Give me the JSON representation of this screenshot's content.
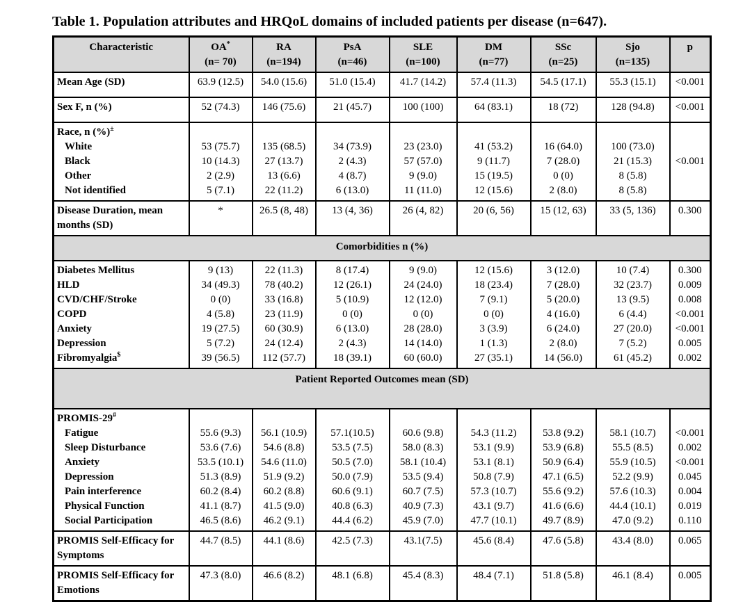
{
  "page": {
    "title": "Table 1. Population attributes and HRQoL domains of included patients per disease (n=647)."
  },
  "colors": {
    "header_bg": "#d8d8d8",
    "border": "#000000",
    "page_bg": "#ffffff"
  },
  "table": {
    "header": {
      "characteristic": "Characteristic",
      "p": "p",
      "diseases": [
        {
          "abbr": "OA",
          "sup": "*",
          "n": "(n= 70)"
        },
        {
          "abbr": "RA",
          "sup": "",
          "n": "(n=194)"
        },
        {
          "abbr": "PsA",
          "sup": "",
          "n": "(n=46)"
        },
        {
          "abbr": "SLE",
          "sup": "",
          "n": "(n=100)"
        },
        {
          "abbr": "DM",
          "sup": "",
          "n": "(n=77)"
        },
        {
          "abbr": "SSc",
          "sup": "",
          "n": "(n=25)"
        },
        {
          "abbr": "Sjo",
          "sup": "",
          "n": "(n=135)"
        }
      ]
    },
    "rows": [
      {
        "type": "block",
        "lines": [
          {
            "label": "Mean Age (SD)",
            "values": [
              "63.9 (12.5)",
              "54.0 (15.6)",
              "51.0 (15.4)",
              "41.7 (14.2)",
              "57.4 (11.3)",
              "54.5 (17.1)",
              "55.3 (15.1)"
            ],
            "p": "<0.001"
          }
        ]
      },
      {
        "type": "block",
        "lines": [
          {
            "label": "Sex F, n (%)",
            "values": [
              "52 (74.3)",
              "146 (75.6)",
              "21 (45.7)",
              "100 (100)",
              "64 (83.1)",
              "18 (72)",
              "128 (94.8)"
            ],
            "p": "<0.001"
          }
        ]
      },
      {
        "type": "block",
        "header": {
          "label": "Race, n (%)",
          "sup": "±"
        },
        "shared_p": "<0.001",
        "lines": [
          {
            "label": "White",
            "indent": true,
            "values": [
              "53 (75.7)",
              "135 (68.5)",
              "34 (73.9)",
              "23 (23.0)",
              "41 (53.2)",
              "16 (64.0)",
              "100 (73.0)"
            ],
            "p": ""
          },
          {
            "label": "Black",
            "indent": true,
            "values": [
              "10 (14.3)",
              "27 (13.7)",
              "2 (4.3)",
              "57 (57.0)",
              "9 (11.7)",
              "7 (28.0)",
              "21 (15.3)"
            ],
            "p": ""
          },
          {
            "label": "Other",
            "indent": true,
            "values": [
              "2 (2.9)",
              "13 (6.6)",
              "4 (8.7)",
              "9 (9.0)",
              "15 (19.5)",
              "0 (0)",
              "8 (5.8)"
            ],
            "p": ""
          },
          {
            "label": "Not identified",
            "indent": true,
            "values": [
              "5 (7.1)",
              "22 (11.2)",
              "6 (13.0)",
              "11 (11.0)",
              "12 (15.6)",
              "2 (8.0)",
              "8 (5.8)"
            ],
            "p": ""
          }
        ]
      },
      {
        "type": "block",
        "lines": [
          {
            "label": "Disease Duration, mean months (SD)",
            "values": [
              "*",
              "26.5 (8, 48)",
              "13 (4, 36)",
              "26 (4, 82)",
              "20 (6, 56)",
              "15 (12, 63)",
              "33 (5, 136)"
            ],
            "p": "0.300"
          }
        ]
      },
      {
        "type": "section",
        "label": "Comorbidities n (%)",
        "tall": false
      },
      {
        "type": "block",
        "lines": [
          {
            "label": "Diabetes Mellitus",
            "values": [
              "9 (13)",
              "22 (11.3)",
              "8 (17.4)",
              "9 (9.0)",
              "12 (15.6)",
              "3 (12.0)",
              "10 (7.4)"
            ],
            "p": "0.300"
          },
          {
            "label": "HLD",
            "values": [
              "34 (49.3)",
              "78 (40.2)",
              "12 (26.1)",
              "24 (24.0)",
              "18 (23.4)",
              "7 (28.0)",
              "32 (23.7)"
            ],
            "p": "0.009"
          },
          {
            "label": "CVD/CHF/Stroke",
            "values": [
              "0 (0)",
              "33 (16.8)",
              "5 (10.9)",
              "12 (12.0)",
              "7 (9.1)",
              "5 (20.0)",
              "13 (9.5)"
            ],
            "p": "0.008"
          },
          {
            "label": "COPD",
            "values": [
              "4 (5.8)",
              "23 (11.9)",
              "0 (0)",
              "0 (0)",
              "0 (0)",
              "4 (16.0)",
              "6 (4.4)"
            ],
            "p": "<0.001"
          },
          {
            "label": "Anxiety",
            "values": [
              "19 (27.5)",
              "60 (30.9)",
              "6 (13.0)",
              "28 (28.0)",
              "3 (3.9)",
              "6 (24.0)",
              "27 (20.0)"
            ],
            "p": "<0.001"
          },
          {
            "label": "Depression",
            "values": [
              "5 (7.2)",
              "24 (12.4)",
              "2 (4.3)",
              "14 (14.0)",
              "1 (1.3)",
              "2 (8.0)",
              "7 (5.2)"
            ],
            "p": "0.005"
          },
          {
            "label": "Fibromyalgia",
            "sup": "$",
            "values": [
              "39 (56.5)",
              "112 (57.7)",
              "18 (39.1)",
              "60 (60.0)",
              "27 (35.1)",
              "14 (56.0)",
              "61 (45.2)"
            ],
            "p": "0.002"
          }
        ]
      },
      {
        "type": "section",
        "label": "Patient Reported Outcomes mean (SD)",
        "tall": true
      },
      {
        "type": "block",
        "header": {
          "label": "PROMIS-29",
          "sup": "#"
        },
        "lines": [
          {
            "label": "Fatigue",
            "indent": true,
            "values": [
              "55.6 (9.3)",
              "56.1 (10.9)",
              "57.1(10.5)",
              "60.6 (9.8)",
              "54.3 (11.2)",
              "53.8 (9.2)",
              "58.1 (10.7)"
            ],
            "p": "<0.001"
          },
          {
            "label": "Sleep Disturbance",
            "indent": true,
            "values": [
              "53.6 (7.6)",
              "54.6 (8.8)",
              "53.5 (7.5)",
              "58.0 (8.3)",
              "53.1 (9.9)",
              "53.9 (6.8)",
              "55.5 (8.5)"
            ],
            "p": "0.002"
          },
          {
            "label": "Anxiety",
            "indent": true,
            "values": [
              "53.5 (10.1)",
              "54.6 (11.0)",
              "50.5 (7.0)",
              "58.1 (10.4)",
              "53.1 (8.1)",
              "50.9 (6.4)",
              "55.9 (10.5)"
            ],
            "p": "<0.001"
          },
          {
            "label": "Depression",
            "indent": true,
            "values": [
              "51.3 (8.9)",
              "51.9 (9.2)",
              "50.0 (7.9)",
              "53.5 (9.4)",
              "50.8 (7.9)",
              "47.1 (6.5)",
              "52.2 (9.9)"
            ],
            "p": "0.045"
          },
          {
            "label": "Pain interference",
            "indent": true,
            "values": [
              "60.2 (8.4)",
              "60.2 (8.8)",
              "60.6 (9.1)",
              "60.7 (7.5)",
              "57.3 (10.7)",
              "55.6 (9.2)",
              "57.6 (10.3)"
            ],
            "p": "0.004"
          },
          {
            "label": "Physical Function",
            "indent": true,
            "values": [
              "41.1 (8.7)",
              "41.5 (9.0)",
              "40.8 (6.3)",
              "40.9 (7.3)",
              "43.1 (9.7)",
              "41.6 (6.6)",
              "44.4 (10.1)"
            ],
            "p": "0.019"
          },
          {
            "label": "Social Participation",
            "indent": true,
            "values": [
              "46.5 (8.6)",
              "46.2 (9.1)",
              "44.4 (6.2)",
              "45.9 (7.0)",
              "47.7 (10.1)",
              "49.7 (8.9)",
              "47.0 (9.2)"
            ],
            "p": "0.110"
          }
        ]
      },
      {
        "type": "block",
        "lines": [
          {
            "label": "PROMIS Self-Efficacy for Symptoms",
            "values": [
              "44.7 (8.5)",
              "44.1 (8.6)",
              "42.5 (7.3)",
              "43.1(7.5)",
              "45.6 (8.4)",
              "47.6 (5.8)",
              "43.4 (8.0)"
            ],
            "p": "0.065"
          }
        ]
      },
      {
        "type": "block",
        "lines": [
          {
            "label": "PROMIS Self-Efficacy for Emotions",
            "values": [
              "47.3 (8.0)",
              "46.6 (8.2)",
              "48.1 (6.8)",
              "45.4 (8.3)",
              "48.4 (7.1)",
              "51.8 (5.8)",
              "46.1 (8.4)"
            ],
            "p": "0.005"
          }
        ]
      }
    ]
  }
}
